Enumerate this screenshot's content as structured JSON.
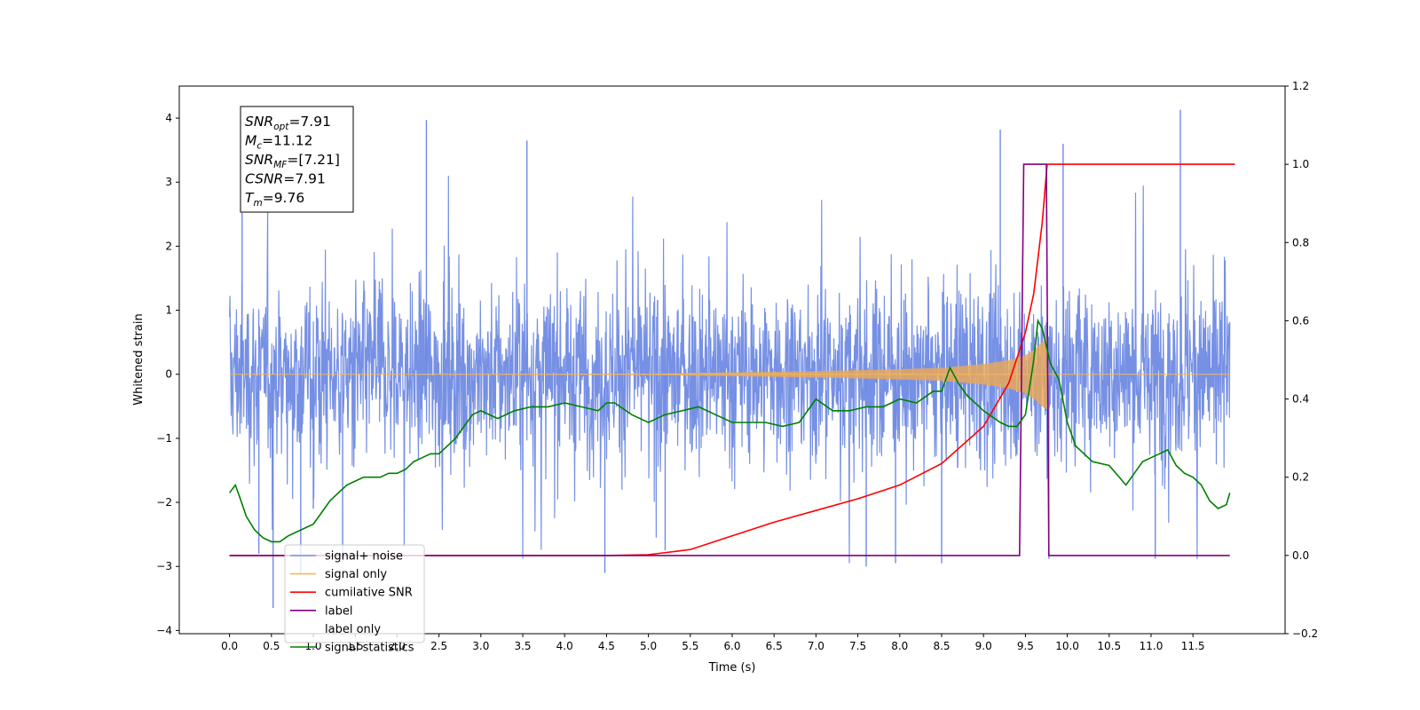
{
  "chart_data": {
    "type": "line",
    "title": "",
    "xlabel": "Time (s)",
    "ylabel": "Whitened strain",
    "y2label": "",
    "xlim": [
      -0.6,
      12.6
    ],
    "ylim": [
      -4.05,
      4.5
    ],
    "y2lim": [
      -0.2,
      1.2
    ],
    "grid": false,
    "x_ticks": [
      "0.0",
      "0.5",
      "1.0",
      "1.5",
      "2.0",
      "2.5",
      "3.0",
      "3.5",
      "4.0",
      "4.5",
      "5.0",
      "5.5",
      "6.0",
      "6.5",
      "7.0",
      "7.5",
      "8.0",
      "8.5",
      "9.0",
      "9.5",
      "10.0",
      "10.5",
      "11.0",
      "11.5"
    ],
    "y_ticks": [
      "4",
      "3",
      "2",
      "1",
      "0",
      "−1",
      "−2",
      "−3",
      "−4"
    ],
    "y2_ticks": [
      "1.2",
      "1.0",
      "0.8",
      "0.6",
      "0.4",
      "0.2",
      "0.0",
      "−0.2"
    ],
    "annotation": {
      "lines": [
        {
          "base": "SNR",
          "sub": "opt",
          "rest": "=7.91"
        },
        {
          "base": "M",
          "sub": "c",
          "rest": "=11.12"
        },
        {
          "base": "SNR",
          "sub": "MF",
          "rest": "=[7.21]"
        },
        {
          "base": "CSNR",
          "sub": "",
          "rest": "=7.91"
        },
        {
          "base": "T",
          "sub": "m",
          "rest": "=9.76"
        }
      ]
    },
    "legend": {
      "placement": "lower-left",
      "entries": [
        {
          "label": "signal+ noise",
          "color": "#7b93e6"
        },
        {
          "label": "signal only",
          "color": "#f5b75a"
        },
        {
          "label": "cumilative SNR",
          "color": "#ff0000"
        },
        {
          "label": "label",
          "color": "#800080"
        },
        {
          "label": "label only",
          "color": "#c8c8c8"
        },
        {
          "label": "signal statistics",
          "color": "#008000"
        }
      ]
    },
    "series": [
      {
        "name": "signal+ noise",
        "axis": "left",
        "color": "#6f8ae3",
        "description_of_envelope": "dense noise between about -2.6 and 2.7 over 0-12 s",
        "spikes": [
          [
            0.52,
            -3.65
          ],
          [
            0.35,
            -2.8
          ],
          [
            0.85,
            -3.1
          ],
          [
            1.35,
            -2.9
          ],
          [
            2.35,
            3.97
          ],
          [
            3.55,
            3.65
          ],
          [
            4.48,
            -3.1
          ],
          [
            5.2,
            -2.75
          ],
          [
            7.6,
            -3.0
          ],
          [
            7.95,
            -2.95
          ],
          [
            8.5,
            -2.95
          ],
          [
            9.2,
            3.82
          ],
          [
            9.78,
            -2.88
          ],
          [
            9.95,
            3.6
          ],
          [
            11.05,
            -2.88
          ],
          [
            11.35,
            4.13
          ],
          [
            0.15,
            2.52
          ],
          [
            1.0,
            -2.1
          ]
        ]
      },
      {
        "name": "signal only",
        "axis": "left",
        "color": "#e8a85c",
        "envelope": [
          [
            0.0,
            0.0
          ],
          [
            5.0,
            0.01
          ],
          [
            7.0,
            0.05
          ],
          [
            8.0,
            0.08
          ],
          [
            8.5,
            0.1
          ],
          [
            9.0,
            0.16
          ],
          [
            9.3,
            0.22
          ],
          [
            9.5,
            0.3
          ],
          [
            9.6,
            0.38
          ],
          [
            9.7,
            0.5
          ],
          [
            9.76,
            0.55
          ],
          [
            9.78,
            0.0
          ]
        ]
      },
      {
        "name": "cumilative SNR",
        "axis": "right",
        "color": "#ff0000",
        "x": [
          0,
          4.5,
          5.0,
          5.5,
          6.0,
          6.5,
          7.0,
          7.5,
          8.0,
          8.5,
          9.0,
          9.3,
          9.5,
          9.6,
          9.7,
          9.76,
          9.78,
          10.0,
          11.0,
          12.0
        ],
        "values": [
          0,
          0,
          0.002,
          0.015,
          0.05,
          0.085,
          0.115,
          0.145,
          0.18,
          0.235,
          0.33,
          0.44,
          0.57,
          0.67,
          0.85,
          1.0,
          1.0,
          1.0,
          1.0,
          1.0
        ]
      },
      {
        "name": "label",
        "axis": "right",
        "color": "#800080",
        "x": [
          0,
          9.43,
          9.48,
          9.75,
          9.78,
          9.83,
          11.94
        ],
        "values": [
          0,
          0,
          1,
          1,
          0,
          0,
          0
        ]
      },
      {
        "name": "signal statistics",
        "axis": "right",
        "color": "#008000",
        "x": [
          0.0,
          0.07,
          0.12,
          0.2,
          0.3,
          0.4,
          0.5,
          0.6,
          0.7,
          0.8,
          0.9,
          1.0,
          1.1,
          1.2,
          1.3,
          1.4,
          1.5,
          1.6,
          1.7,
          1.8,
          1.9,
          2.0,
          2.1,
          2.2,
          2.3,
          2.4,
          2.5,
          2.6,
          2.7,
          2.8,
          2.9,
          3.0,
          3.2,
          3.4,
          3.6,
          3.8,
          4.0,
          4.2,
          4.4,
          4.5,
          4.6,
          4.8,
          5.0,
          5.2,
          5.4,
          5.6,
          5.8,
          6.0,
          6.2,
          6.4,
          6.6,
          6.8,
          7.0,
          7.2,
          7.4,
          7.6,
          7.8,
          8.0,
          8.2,
          8.4,
          8.5,
          8.6,
          8.7,
          8.8,
          9.0,
          9.2,
          9.3,
          9.4,
          9.5,
          9.6,
          9.65,
          9.7,
          9.8,
          9.9,
          10.0,
          10.1,
          10.3,
          10.5,
          10.7,
          10.8,
          10.9,
          11.0,
          11.1,
          11.2,
          11.3,
          11.4,
          11.5,
          11.6,
          11.7,
          11.8,
          11.9,
          11.94
        ],
        "values": [
          0.16,
          0.18,
          0.15,
          0.1,
          0.065,
          0.045,
          0.035,
          0.035,
          0.05,
          0.06,
          0.07,
          0.08,
          0.11,
          0.14,
          0.16,
          0.18,
          0.19,
          0.2,
          0.2,
          0.2,
          0.21,
          0.21,
          0.22,
          0.24,
          0.25,
          0.26,
          0.26,
          0.28,
          0.3,
          0.33,
          0.36,
          0.37,
          0.35,
          0.37,
          0.38,
          0.38,
          0.39,
          0.38,
          0.37,
          0.39,
          0.39,
          0.36,
          0.34,
          0.36,
          0.37,
          0.38,
          0.36,
          0.34,
          0.34,
          0.34,
          0.33,
          0.34,
          0.4,
          0.37,
          0.37,
          0.38,
          0.38,
          0.4,
          0.39,
          0.42,
          0.42,
          0.48,
          0.44,
          0.41,
          0.37,
          0.34,
          0.33,
          0.33,
          0.36,
          0.5,
          0.6,
          0.58,
          0.49,
          0.45,
          0.34,
          0.28,
          0.24,
          0.23,
          0.18,
          0.21,
          0.24,
          0.25,
          0.26,
          0.27,
          0.23,
          0.21,
          0.2,
          0.18,
          0.14,
          0.12,
          0.13,
          0.16
        ]
      }
    ]
  }
}
